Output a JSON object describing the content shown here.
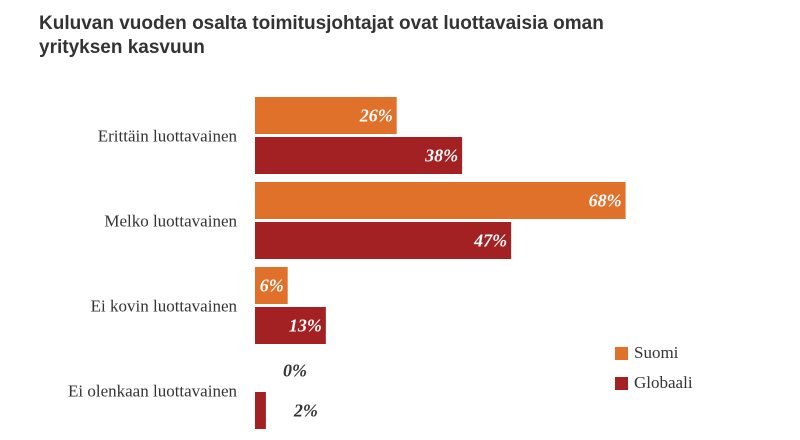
{
  "chart_data": {
    "type": "bar",
    "orientation": "horizontal",
    "title": "Kuluvan vuoden osalta toimitusjohtajat ovat luottavaisia oman yrityksen kasvuun",
    "categories": [
      "Erittäin luottavainen",
      "Melko luottavainen",
      "Ei kovin luottavainen",
      "Ei olenkaan luottavainen"
    ],
    "series": [
      {
        "name": "Suomi",
        "color": "#E0712A",
        "values": [
          26,
          68,
          6,
          0
        ],
        "labels": [
          "26%",
          "68%",
          "6%",
          "0%"
        ]
      },
      {
        "name": "Globaali",
        "color": "#A42123",
        "values": [
          38,
          47,
          13,
          2
        ],
        "labels": [
          "38%",
          "47%",
          "13%",
          "2%"
        ]
      }
    ],
    "xlim": [
      0,
      100
    ],
    "grid": false,
    "legend_position": "bottom-right"
  }
}
